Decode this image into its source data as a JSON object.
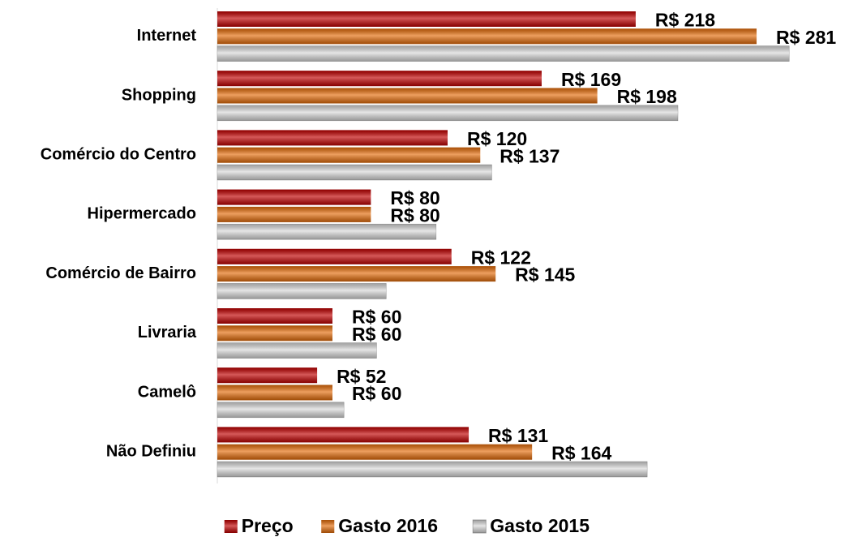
{
  "chart_data": {
    "type": "bar",
    "orientation": "horizontal",
    "categories": [
      "Internet",
      "Shopping",
      "Comércio do Centro",
      "Hipermercado",
      "Comércio de Bairro",
      "Livraria",
      "Camelô",
      "Não Definiu"
    ],
    "series": [
      {
        "name": "Preço",
        "color": "#c00000",
        "values": [
          218,
          169,
          120,
          80,
          122,
          60,
          52,
          131
        ],
        "value_labels": [
          "R$ 218",
          "R$ 169",
          "R$ 120",
          "R$ 80",
          "R$ 122",
          "R$ 60",
          "R$ 52",
          "R$ 131"
        ]
      },
      {
        "name": "Gasto 2016",
        "color": "#e46c0a",
        "values": [
          281,
          198,
          137,
          80,
          145,
          60,
          60,
          164
        ],
        "value_labels": [
          "R$ 281",
          "R$ 198",
          "R$ 137",
          "R$ 80",
          "R$ 145",
          "R$ 60",
          "R$ 60",
          "R$ 164"
        ]
      },
      {
        "name": "Gasto 2015",
        "color": "#d9d9d9",
        "values": [
          298,
          240,
          143,
          114,
          88,
          83,
          66,
          224
        ]
      }
    ],
    "xlim": [
      0,
      300
    ],
    "legend": "bottom"
  }
}
